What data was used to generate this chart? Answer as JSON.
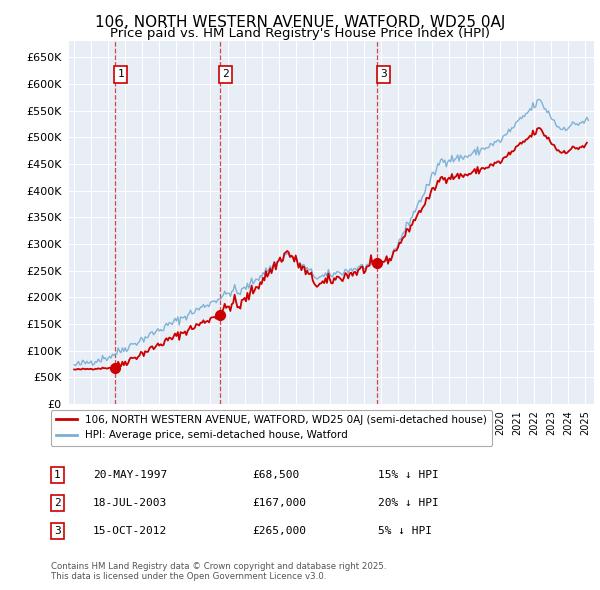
{
  "title": "106, NORTH WESTERN AVENUE, WATFORD, WD25 0AJ",
  "subtitle": "Price paid vs. HM Land Registry's House Price Index (HPI)",
  "sale_dates_decimal": [
    1997.38,
    2003.54,
    2012.79
  ],
  "sale_prices": [
    68500,
    167000,
    265000
  ],
  "sale_labels": [
    "1",
    "2",
    "3"
  ],
  "sale_annotations": [
    {
      "label": "1",
      "date": "20-MAY-1997",
      "price": "£68,500",
      "note": "15% ↓ HPI"
    },
    {
      "label": "2",
      "date": "18-JUL-2003",
      "price": "£167,000",
      "note": "20% ↓ HPI"
    },
    {
      "label": "3",
      "date": "15-OCT-2012",
      "price": "£265,000",
      "note": "5% ↓ HPI"
    }
  ],
  "hpi_line_color": "#7BAFD4",
  "sale_line_color": "#CC0000",
  "background_color": "#FFFFFF",
  "plot_bg_color": "#E8EEF6",
  "grid_color": "#FFFFFF",
  "ylim": [
    0,
    680000
  ],
  "yticks": [
    0,
    50000,
    100000,
    150000,
    200000,
    250000,
    300000,
    350000,
    400000,
    450000,
    500000,
    550000,
    600000,
    650000
  ],
  "xlim_start": 1994.7,
  "xlim_end": 2025.5,
  "legend_entries": [
    "106, NORTH WESTERN AVENUE, WATFORD, WD25 0AJ (semi-detached house)",
    "HPI: Average price, semi-detached house, Watford"
  ],
  "footer_text": "Contains HM Land Registry data © Crown copyright and database right 2025.\nThis data is licensed under the Open Government Licence v3.0.",
  "title_fontsize": 11,
  "subtitle_fontsize": 9.5
}
